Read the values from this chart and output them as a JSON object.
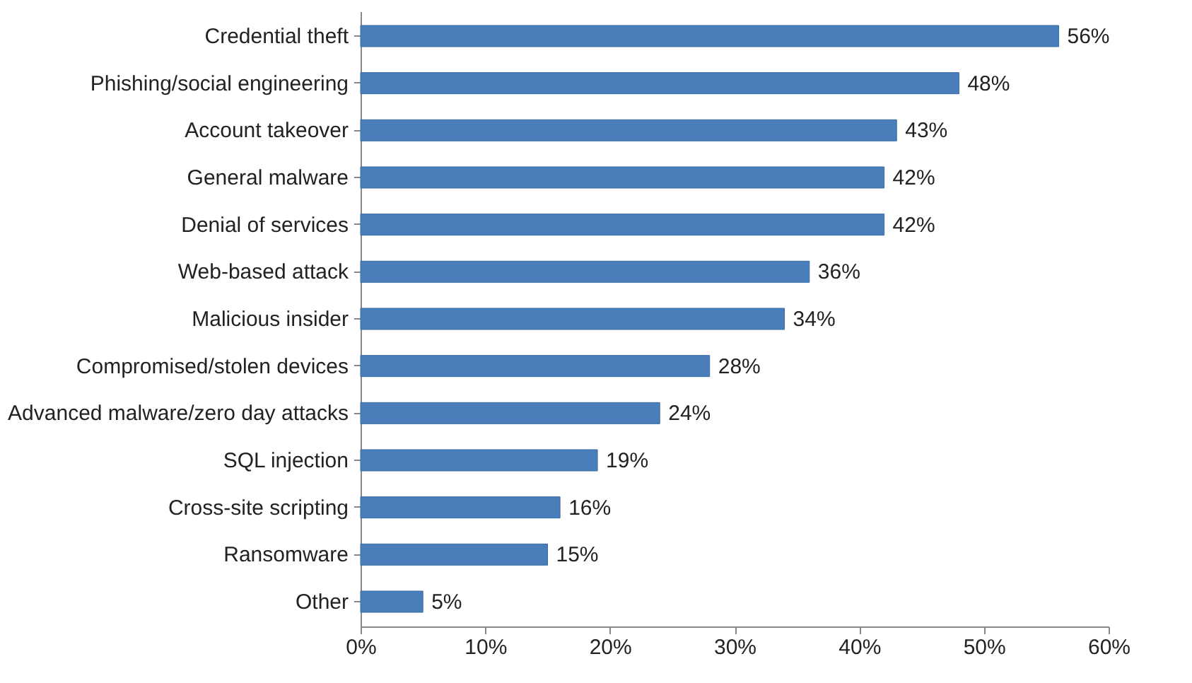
{
  "chart_data": {
    "type": "bar",
    "orientation": "horizontal",
    "categories": [
      "Credential theft",
      "Phishing/social engineering",
      "Account takeover",
      "General malware",
      "Denial of services",
      "Web-based attack",
      "Malicious insider",
      "Compromised/stolen devices",
      "Advanced malware/zero day attacks",
      "SQL injection",
      "Cross-site scripting",
      "Ransomware",
      "Other"
    ],
    "values": [
      56,
      48,
      43,
      42,
      42,
      36,
      34,
      28,
      24,
      19,
      16,
      15,
      5
    ],
    "value_labels": [
      "56%",
      "48%",
      "43%",
      "42%",
      "42%",
      "36%",
      "34%",
      "28%",
      "24%",
      "19%",
      "16%",
      "15%",
      "5%"
    ],
    "color": "#4a7ebb",
    "xlim": [
      0,
      60
    ],
    "xticks": [
      {
        "value": 0,
        "label": "0%"
      },
      {
        "value": 10,
        "label": "10%"
      },
      {
        "value": 20,
        "label": "20%"
      },
      {
        "value": 30,
        "label": "30%"
      },
      {
        "value": 40,
        "label": "40%"
      },
      {
        "value": 50,
        "label": "50%"
      },
      {
        "value": 60,
        "label": "60%"
      }
    ],
    "grid": false
  }
}
